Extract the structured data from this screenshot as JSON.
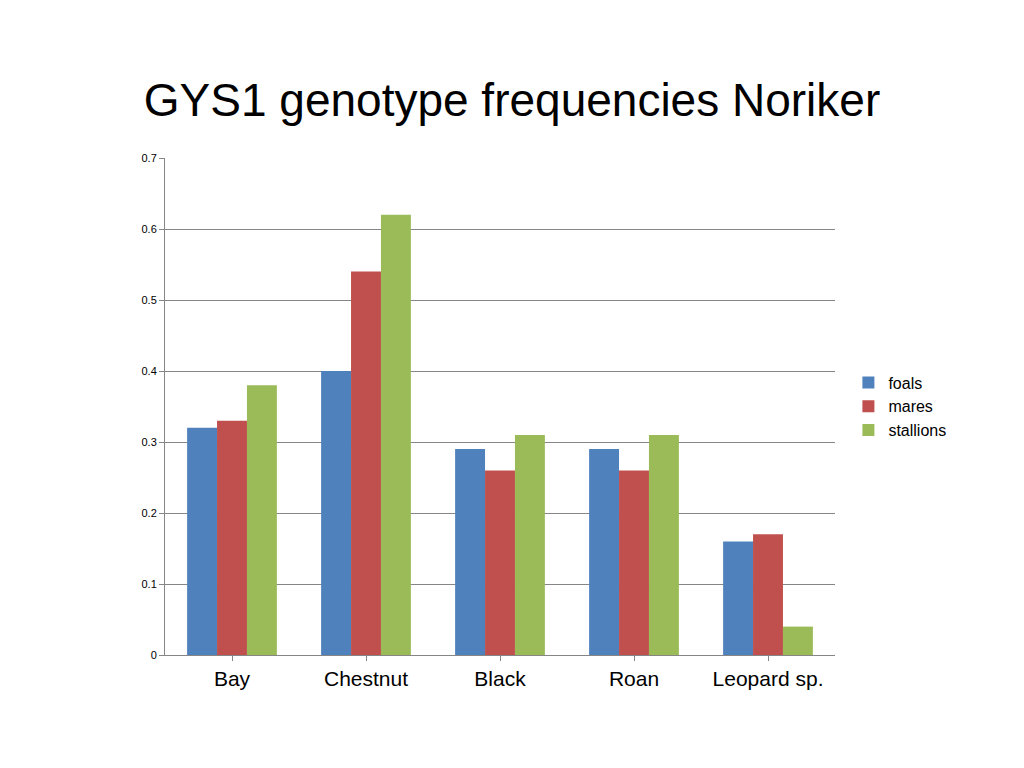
{
  "chart_data": {
    "type": "bar",
    "title": "GYS1 genotype frequencies Noriker",
    "categories": [
      "Bay",
      "Chestnut",
      "Black",
      "Roan",
      "Leopard sp."
    ],
    "series": [
      {
        "name": "foals",
        "color": "#4F81BD",
        "values": [
          0.32,
          0.4,
          0.29,
          0.29,
          0.16
        ]
      },
      {
        "name": "mares",
        "color": "#C0504D",
        "values": [
          0.33,
          0.54,
          0.26,
          0.26,
          0.17
        ]
      },
      {
        "name": "stallions",
        "color": "#9BBB59",
        "values": [
          0.38,
          0.62,
          0.31,
          0.31,
          0.04
        ]
      }
    ],
    "ylim": [
      0,
      0.7
    ],
    "yticks": [
      0,
      0.1,
      0.2,
      0.3,
      0.4,
      0.5,
      0.6,
      0.7
    ],
    "grid": true,
    "legend": "right"
  }
}
